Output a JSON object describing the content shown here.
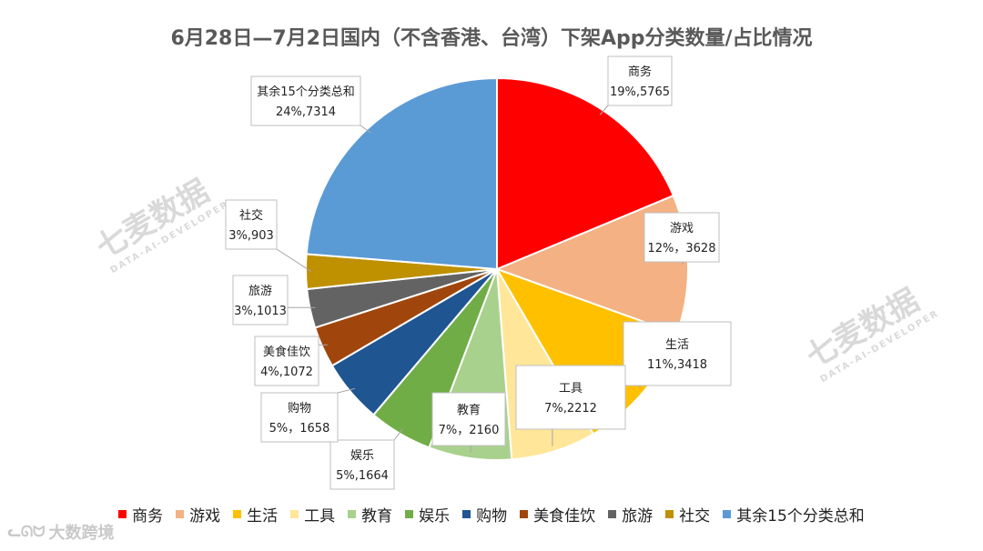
{
  "chart_data": {
    "type": "pie",
    "title": "6月28日—7月2日国内（不含香港、台湾）下架App分类数量/占比情况",
    "legend_position": "bottom",
    "slices": [
      {
        "name": "商务",
        "value": 5765,
        "percent_label": "19%,5765",
        "color": "#ff0000"
      },
      {
        "name": "游戏",
        "value": 3628,
        "percent_label": "12%，3628",
        "color": "#f4b183"
      },
      {
        "name": "生活",
        "value": 3418,
        "percent_label": "11%,3418",
        "color": "#ffc000"
      },
      {
        "name": "工具",
        "value": 2212,
        "percent_label": "7%,2212",
        "color": "#ffe699"
      },
      {
        "name": "教育",
        "value": 2160,
        "percent_label": "7%，2160",
        "color": "#a9d18e"
      },
      {
        "name": "娱乐",
        "value": 1664,
        "percent_label": "5%,1664",
        "color": "#70ad47"
      },
      {
        "name": "购物",
        "value": 1658,
        "percent_label": "5%，1658",
        "color": "#1f5591"
      },
      {
        "name": "美食佳饮",
        "value": 1072,
        "percent_label": "4%,1072",
        "color": "#a0460c"
      },
      {
        "name": "旅游",
        "value": 1013,
        "percent_label": "3%,1013",
        "color": "#636363"
      },
      {
        "name": "社交",
        "value": 903,
        "percent_label": "3%,903",
        "color": "#bf9000"
      },
      {
        "name": "其余15个分类总和",
        "value": 7314,
        "percent_label": "24%,7314",
        "color": "#5b9bd5"
      }
    ]
  },
  "watermarks": {
    "brand": "七麦数据",
    "brand_sub": "DATA-AI-DEVELOPER",
    "corner": "大数跨境"
  }
}
